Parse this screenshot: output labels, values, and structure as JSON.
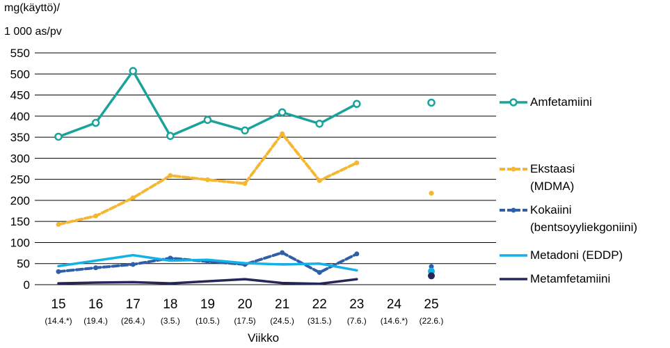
{
  "chart_data": {
    "type": "line",
    "ylabel_line1": "mg(käyttö)/",
    "ylabel_line2": "1 000 as/pv",
    "xlabel": "Viikko",
    "ylim": [
      0,
      550
    ],
    "yticks": [
      0,
      50,
      100,
      150,
      200,
      250,
      300,
      350,
      400,
      450,
      500,
      550
    ],
    "grid": true,
    "legend_position": "right",
    "categories": [
      {
        "week": "15",
        "date": "(14.4.*)"
      },
      {
        "week": "16",
        "date": "(19.4.)"
      },
      {
        "week": "17",
        "date": "(26.4.)"
      },
      {
        "week": "18",
        "date": "(3.5.)"
      },
      {
        "week": "19",
        "date": "(10.5.)"
      },
      {
        "week": "20",
        "date": "(17.5)"
      },
      {
        "week": "21",
        "date": "(24.5.)"
      },
      {
        "week": "22",
        "date": "(31.5.)"
      },
      {
        "week": "23",
        "date": "(7.6.)"
      },
      {
        "week": "24",
        "date": "(14.6.*)"
      },
      {
        "week": "25",
        "date": "(22.6.)"
      }
    ],
    "series": [
      {
        "name": "Amfetamiini",
        "color": "#1aa39a",
        "style": "solid",
        "marker": "ring",
        "values": [
          351,
          384,
          507,
          353,
          391,
          366,
          409,
          382,
          429,
          null,
          432
        ]
      },
      {
        "name": "Ekstaasi\n(MDMA)",
        "color": "#f5b731",
        "style": "dashed",
        "marker": "dot",
        "values": [
          143,
          163,
          206,
          259,
          249,
          240,
          358,
          247,
          289,
          null,
          217
        ]
      },
      {
        "name": "Kokaiini\n(bentsoyyliekgoniini)",
        "color": "#2e5fa8",
        "style": "dashed",
        "marker": "dot",
        "values": [
          31,
          40,
          48,
          63,
          55,
          48,
          76,
          29,
          73,
          null,
          43
        ]
      },
      {
        "name": "Metadoni (EDDP)",
        "color": "#14b1e7",
        "style": "solid",
        "marker": "none",
        "values": [
          44,
          57,
          70,
          57,
          59,
          51,
          48,
          50,
          34,
          null,
          32
        ]
      },
      {
        "name": "Metamfetamiini",
        "color": "#272658",
        "style": "solid",
        "marker": "none",
        "values": [
          3,
          5,
          6,
          3,
          8,
          13,
          4,
          2,
          13,
          null,
          21
        ]
      }
    ]
  }
}
